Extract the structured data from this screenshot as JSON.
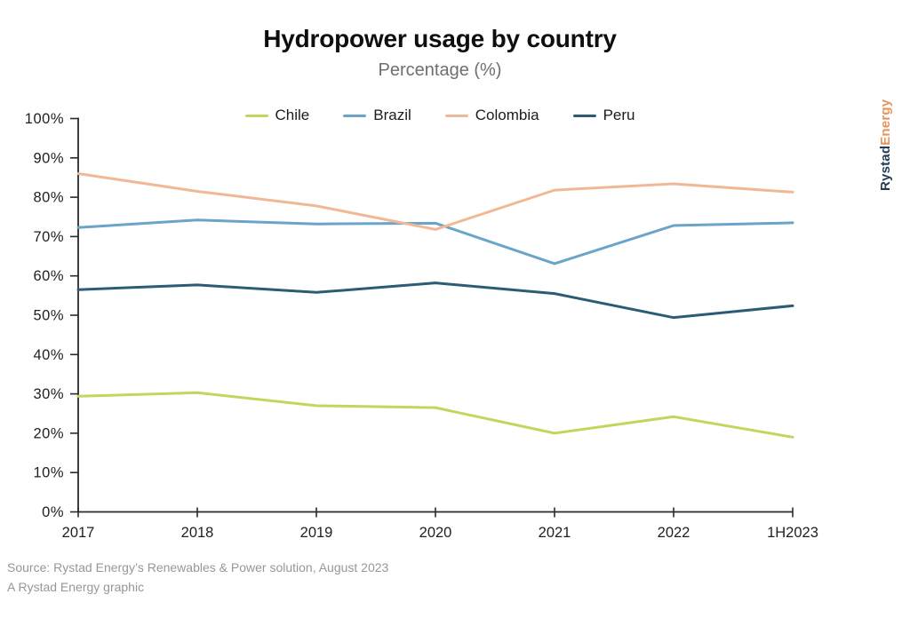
{
  "header": {
    "title": "Hydropower usage by country",
    "subtitle": "Percentage (%)"
  },
  "logo": {
    "brand_part_1": "Rystad",
    "brand_part_2": "Energy",
    "brand_color_1": "#233b54",
    "brand_color_2": "#e8935a"
  },
  "footer": {
    "source": "Source: Rystad Energy’s Renewables & Power solution, August 2023",
    "credit": "A Rystad Energy graphic"
  },
  "chart_data": {
    "type": "line",
    "title": "Hydropower usage by country",
    "subtitle": "Percentage (%)",
    "categories": [
      "2017",
      "2018",
      "2019",
      "2020",
      "2021",
      "2022",
      "1H2023"
    ],
    "series": [
      {
        "name": "Chile",
        "color": "#c2d65e",
        "values": [
          29.4,
          30.3,
          27.0,
          26.5,
          20.0,
          24.2,
          19.0
        ]
      },
      {
        "name": "Brazil",
        "color": "#6aa4c8",
        "values": [
          72.3,
          74.2,
          73.2,
          73.4,
          63.1,
          72.8,
          73.5
        ]
      },
      {
        "name": "Colombia",
        "color": "#f1b896",
        "values": [
          86.0,
          81.5,
          77.8,
          71.8,
          81.8,
          83.4,
          81.3
        ]
      },
      {
        "name": "Peru",
        "color": "#2b5c74",
        "values": [
          56.5,
          57.7,
          55.8,
          58.2,
          55.5,
          49.4,
          52.4
        ]
      }
    ],
    "xlabel": "",
    "ylabel": "Percentage (%)",
    "ylim": [
      0,
      100
    ],
    "yticks": [
      0,
      10,
      20,
      30,
      40,
      50,
      60,
      70,
      80,
      90,
      100
    ],
    "ytick_suffix": "%",
    "legend_position": "top",
    "grid": false,
    "axis_color": "#2a2a2a",
    "tick_label_color": "#1f1f1f"
  }
}
